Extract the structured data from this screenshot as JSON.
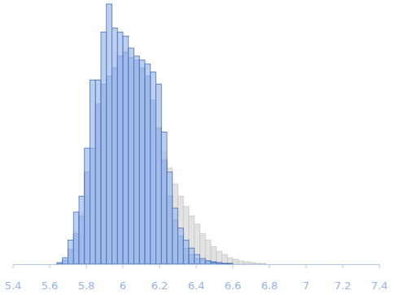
{
  "chart_data": {
    "type": "histogram",
    "bins": [
      5.61,
      5.64,
      5.67,
      5.7,
      5.73,
      5.76,
      5.79,
      5.82,
      5.85,
      5.88,
      5.91,
      5.94,
      5.97,
      6.0,
      6.03,
      6.06,
      6.09,
      6.12,
      6.15,
      6.18,
      6.21,
      6.24,
      6.27,
      6.3,
      6.33,
      6.36,
      6.39,
      6.42,
      6.45,
      6.48,
      6.51,
      6.54,
      6.57,
      6.6,
      6.63,
      6.66,
      6.69,
      6.72,
      6.75,
      6.78,
      6.81,
      6.84,
      6.87,
      6.9,
      6.93,
      6.96,
      6.99,
      7.02,
      7.05,
      7.08,
      7.11
    ],
    "series": [
      {
        "color": "#e2e2e2",
        "values": [
          0,
          0,
          0,
          20,
          40,
          65,
          115,
          145,
          200,
          225,
          235,
          245,
          260,
          265,
          258,
          255,
          235,
          200,
          175,
          155,
          140,
          120,
          100,
          85,
          72,
          60,
          50,
          38,
          30,
          22,
          16,
          12,
          8,
          6,
          4,
          3,
          2,
          1,
          1,
          0,
          0,
          0,
          0,
          0,
          0,
          0,
          0,
          0,
          0,
          0
        ]
      },
      {
        "color": "#8eabdf",
        "values": [
          0,
          1,
          5,
          18,
          38,
          60,
          115,
          145,
          200,
          225,
          235,
          245,
          260,
          265,
          258,
          255,
          245,
          235,
          205,
          170,
          130,
          85,
          55,
          35,
          20,
          12,
          7,
          5,
          4,
          3,
          2,
          1,
          1,
          0,
          0,
          0,
          0,
          0,
          0,
          0,
          0,
          0,
          0,
          0,
          0,
          0,
          0,
          0,
          0,
          0
        ]
      },
      {
        "color": "#a7bfea",
        "values": [
          0,
          2,
          8,
          30,
          65,
          85,
          145,
          230,
          230,
          290,
          325,
          295,
          290,
          285,
          270,
          260,
          255,
          250,
          240,
          225,
          165,
          115,
          70,
          45,
          30,
          20,
          12,
          7,
          4,
          2,
          0,
          0,
          0,
          0,
          0,
          0,
          0,
          0,
          0,
          0,
          0,
          0,
          0,
          0,
          0,
          0,
          0,
          0,
          0,
          0
        ]
      }
    ],
    "xlim": [
      5.4,
      7.4
    ],
    "xticks": [
      {
        "value": 5.4,
        "label": "5.4"
      },
      {
        "value": 5.6,
        "label": "5.6"
      },
      {
        "value": 5.8,
        "label": "5.8"
      },
      6,
      {
        "value": 6.2,
        "label": "6.2"
      },
      {
        "value": 6.4,
        "label": "6.4"
      },
      {
        "value": 6.6,
        "label": "6.6"
      },
      {
        "value": 6.8,
        "label": "6.8"
      },
      7,
      {
        "value": 7.2,
        "label": "7.2"
      },
      {
        "value": 7.4,
        "label": "7.4"
      }
    ],
    "ylim": [
      0,
      330
    ],
    "tick_labels": "x",
    "grid": false
  }
}
